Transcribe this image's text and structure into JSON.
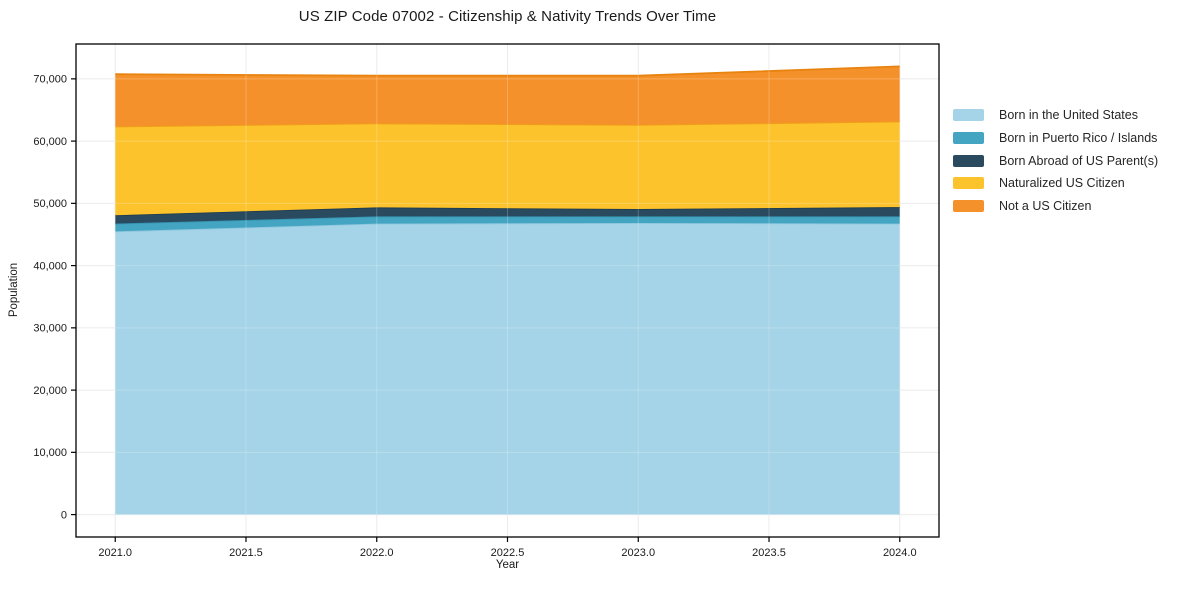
{
  "page": {
    "background": "#ffffff",
    "text_color": "#1a1a1a"
  },
  "chart_data": {
    "type": "area",
    "stacked": true,
    "title": "US ZIP Code 07002 - Citizenship & Nativity Trends Over Time",
    "xlabel": "Year",
    "ylabel": "Population",
    "x": [
      2021,
      2022,
      2023,
      2024
    ],
    "series": [
      {
        "name": "Born in the United States",
        "color": "#a5d4e8",
        "edge": "#8fc7de",
        "values": [
          45500,
          46750,
          46850,
          46750
        ]
      },
      {
        "name": "Born in Puerto Rico / Islands",
        "color": "#44a5c2",
        "edge": "#3494b2",
        "values": [
          1250,
          1150,
          1050,
          1150
        ]
      },
      {
        "name": "Born Abroad of US Parent(s)",
        "color": "#2a4b5f",
        "edge": "#203d50",
        "values": [
          1350,
          1450,
          1200,
          1500
        ]
      },
      {
        "name": "Naturalized US Citizen",
        "color": "#fcc32d",
        "edge": "#f0a117",
        "values": [
          14250,
          13500,
          13500,
          13750
        ]
      },
      {
        "name": "Not a US Citizen",
        "color": "#f5912b",
        "edge": "#e8830f",
        "values": [
          8400,
          7650,
          7900,
          8850
        ]
      }
    ],
    "totals": [
      70750,
      70500,
      70500,
      72000
    ],
    "x_ticks": [
      "2021.0",
      "2021.5",
      "2022.0",
      "2022.5",
      "2023.0",
      "2023.5",
      "2024.0"
    ],
    "x_tick_values": [
      2021,
      2021.5,
      2022,
      2022.5,
      2023,
      2023.5,
      2024
    ],
    "y_ticks": [
      "0",
      "10,000",
      "20,000",
      "30,000",
      "40,000",
      "50,000",
      "60,000",
      "70,000"
    ],
    "y_tick_values": [
      0,
      10000,
      20000,
      30000,
      40000,
      50000,
      60000,
      70000
    ],
    "xlim": [
      2020.85,
      2024.15
    ],
    "ylim": [
      -3600,
      75600
    ],
    "grid": true,
    "gridline_color": "#e7e7e7",
    "spine_color": "#000000",
    "tick_label_color": "#1a1a1a",
    "legend_position": "right-outside"
  }
}
